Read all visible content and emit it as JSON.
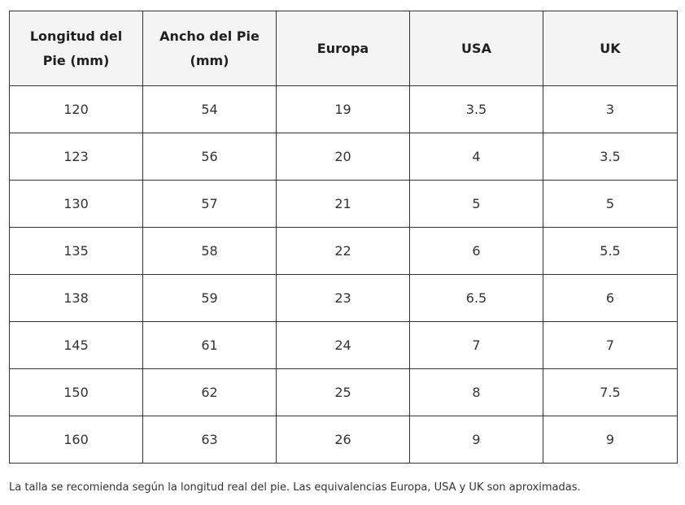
{
  "table": {
    "headers": [
      {
        "line1": "Longitud del",
        "line2": "Pie (mm)"
      },
      {
        "line1": "Ancho del Pie",
        "line2": "(mm)"
      },
      {
        "line1": "Europa",
        "line2": ""
      },
      {
        "line1": "USA",
        "line2": ""
      },
      {
        "line1": "UK",
        "line2": ""
      }
    ],
    "rows": [
      [
        "120",
        "54",
        "19",
        "3.5",
        "3"
      ],
      [
        "123",
        "56",
        "20",
        "4",
        "3.5"
      ],
      [
        "130",
        "57",
        "21",
        "5",
        "5"
      ],
      [
        "135",
        "58",
        "22",
        "6",
        "5.5"
      ],
      [
        "138",
        "59",
        "23",
        "6.5",
        "6"
      ],
      [
        "145",
        "61",
        "24",
        "7",
        "7"
      ],
      [
        "150",
        "62",
        "25",
        "8",
        "7.5"
      ],
      [
        "160",
        "63",
        "26",
        "9",
        "9"
      ]
    ]
  },
  "footnote": "La talla se recomienda según la longitud real del pie. Las equivalencias Europa, USA y UK son aproximadas."
}
